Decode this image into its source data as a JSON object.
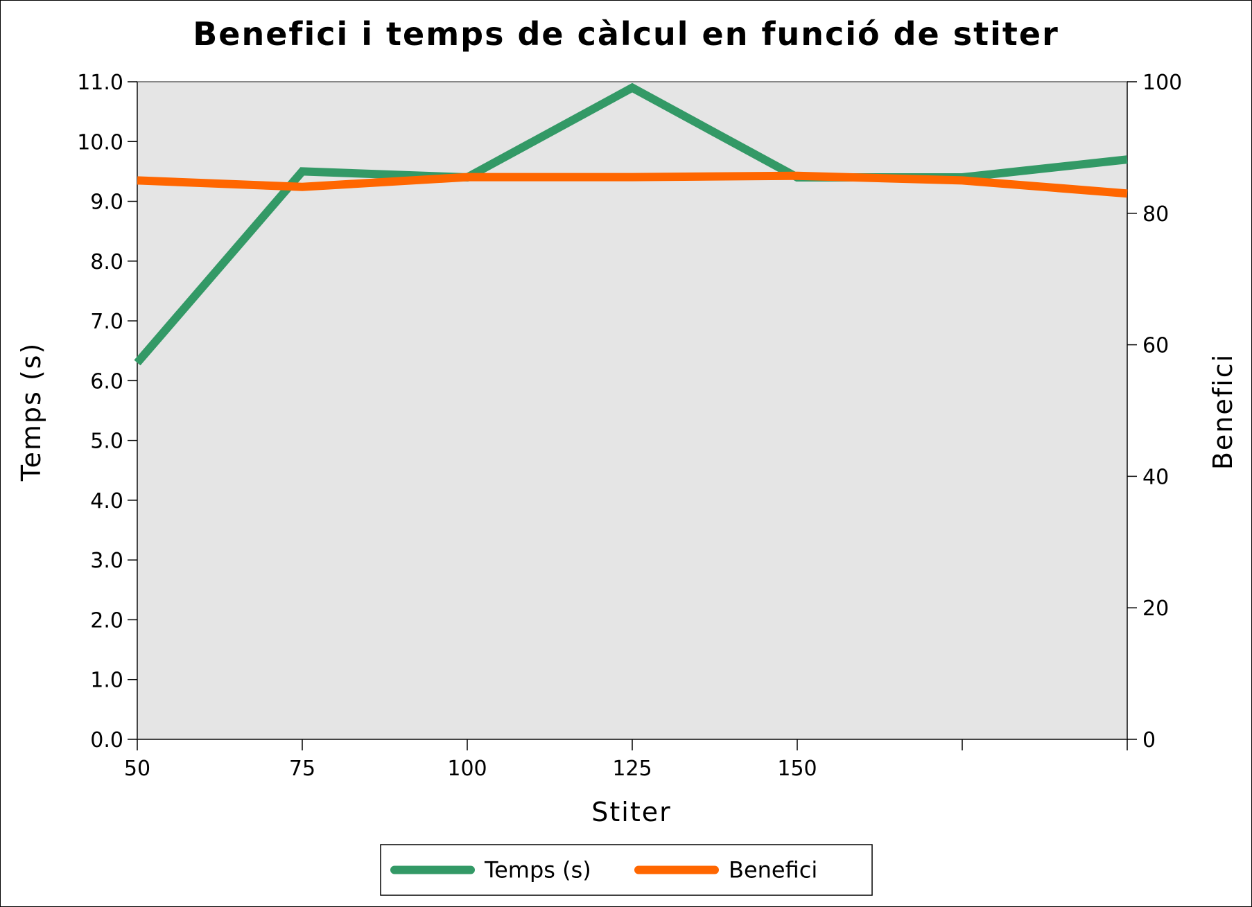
{
  "chart_data": {
    "type": "line",
    "title": "Benefici i temps de càlcul en funció de stiter",
    "xlabel": "Stiter",
    "ylabel_left": "Temps (s)",
    "ylabel_right": "Benefici",
    "x": [
      50,
      75,
      100,
      125,
      150,
      175,
      200
    ],
    "x_tick_values": [
      50,
      75,
      100,
      125,
      150,
      175,
      200
    ],
    "x_tick_labels": [
      "50",
      "75",
      "100",
      "125",
      "150",
      "",
      ""
    ],
    "xlim": [
      50,
      200
    ],
    "ylim_left": [
      0,
      11
    ],
    "ylim_right": [
      0,
      100
    ],
    "y_left_ticks": [
      "0.0",
      "1.0",
      "2.0",
      "3.0",
      "4.0",
      "5.0",
      "6.0",
      "7.0",
      "8.0",
      "9.0",
      "10.0",
      "11.0"
    ],
    "y_right_ticks": [
      "0",
      "20",
      "40",
      "60",
      "80",
      "100"
    ],
    "grid": false,
    "legend_position": "bottom-center",
    "plot_background": "#e5e5e5",
    "series": [
      {
        "name": "Temps (s)",
        "axis": "left",
        "color": "#339966",
        "values": [
          6.3,
          9.5,
          9.4,
          10.9,
          9.4,
          9.4,
          9.7
        ]
      },
      {
        "name": "Benefici",
        "axis": "right",
        "color": "#ff6600",
        "values": [
          85.0,
          84.0,
          85.5,
          85.5,
          85.7,
          85.0,
          83.0
        ]
      }
    ]
  }
}
